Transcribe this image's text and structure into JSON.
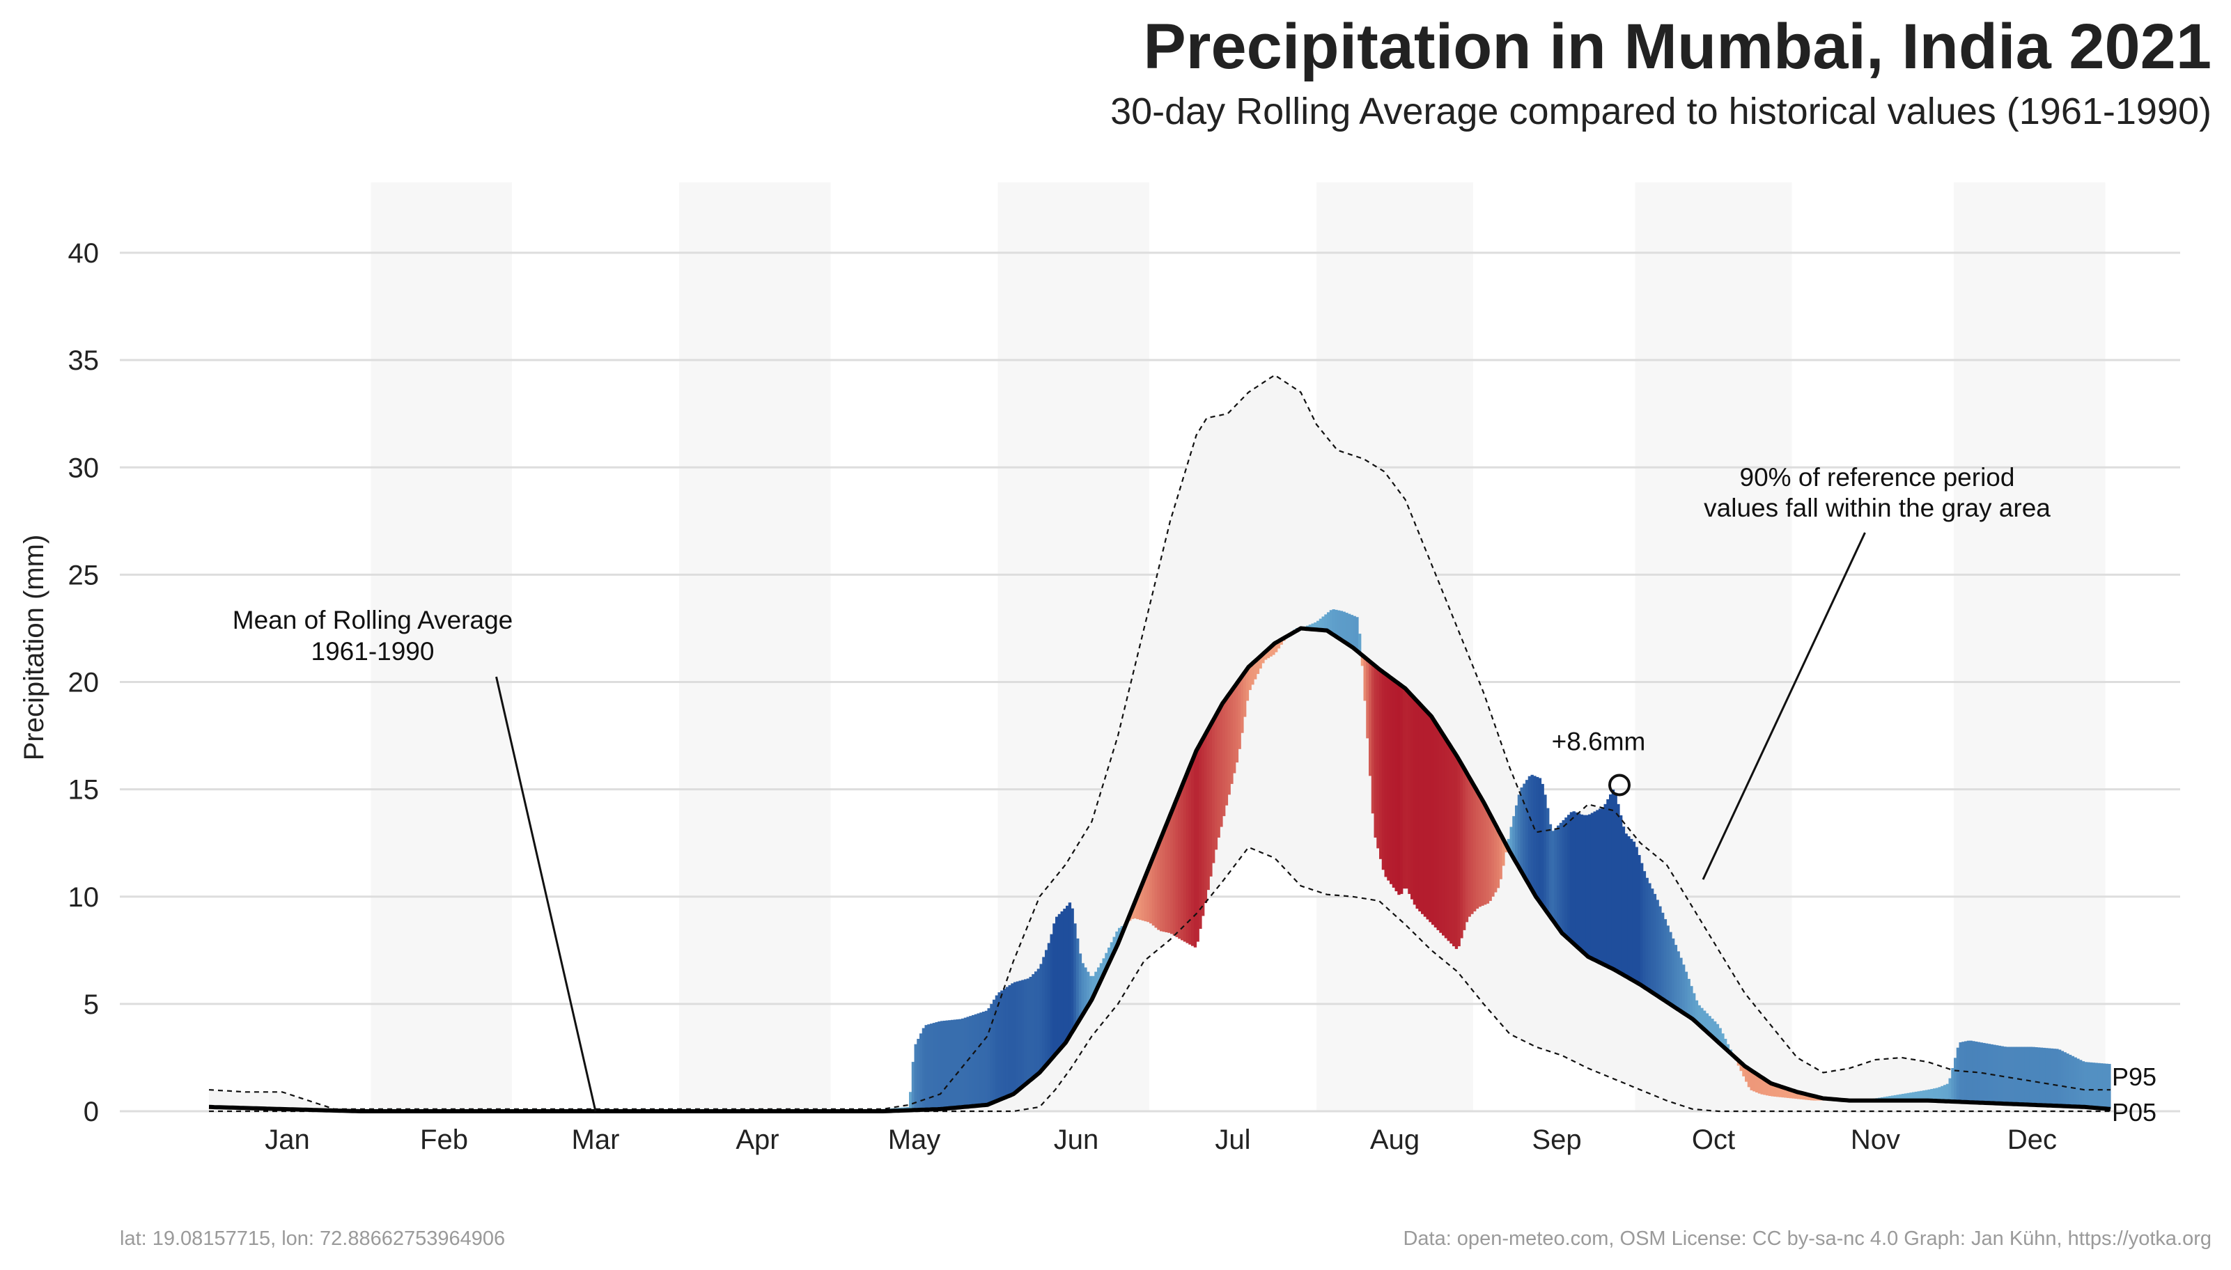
{
  "title": "Precipitation in Mumbai, India 2021",
  "subtitle": "30-day Rolling Average compared to historical values (1961-1990)",
  "footer": {
    "left": "lat: 19.08157715, lon: 72.88662753964906",
    "right": "Data: open-meteo.com, OSM  License: CC by-sa-nc 4.0  Graph: Jan Kühn, https://yotka.org"
  },
  "annotations": {
    "mean_line1": "Mean of Rolling Average",
    "mean_line2": "1961-1990",
    "band_line1": "90% of reference period",
    "band_line2": "values fall within the gray area",
    "peak": "+8.6mm",
    "p95": "P95",
    "p05": "P05"
  },
  "colors": {
    "above_mean": "#1f4e9c",
    "above_mean_light": "#6fb3d6",
    "below_mean": "#f4a582",
    "below_mean_dark": "#b2182b",
    "band": "#f5f5f5",
    "mean_line": "#000000",
    "month_shade": "#f7f7f7",
    "grid": "#dddddd"
  },
  "chart_data": {
    "type": "area",
    "ylabel": "Precipitation (mm)",
    "xlabel": "",
    "ylim": [
      0,
      40
    ],
    "yticks": [
      0,
      5,
      10,
      15,
      20,
      25,
      30,
      35,
      40
    ],
    "xlim": [
      1,
      365
    ],
    "month_labels": [
      "Jan",
      "Feb",
      "Mar",
      "Apr",
      "May",
      "Jun",
      "Jul",
      "Aug",
      "Sep",
      "Oct",
      "Nov",
      "Dec"
    ],
    "month_centers": [
      16,
      46,
      75,
      106,
      136,
      167,
      197,
      228,
      259,
      289,
      320,
      350
    ],
    "shaded_months": [
      [
        32,
        59
      ],
      [
        91,
        120
      ],
      [
        152,
        181
      ],
      [
        213,
        243
      ],
      [
        274,
        304
      ],
      [
        335,
        364
      ]
    ],
    "grid": true,
    "mean": {
      "x": [
        1,
        15,
        30,
        60,
        80,
        110,
        130,
        141,
        150,
        155,
        160,
        165,
        170,
        175,
        180,
        185,
        190,
        195,
        200,
        205,
        210,
        215,
        220,
        225,
        230,
        235,
        240,
        245,
        250,
        255,
        260,
        265,
        270,
        275,
        280,
        285,
        290,
        295,
        300,
        305,
        310,
        315,
        320,
        330,
        340,
        350,
        360,
        365
      ],
      "y": [
        0.2,
        0.1,
        0.0,
        0.0,
        0.0,
        0.0,
        0.0,
        0.1,
        0.3,
        0.8,
        1.8,
        3.2,
        5.2,
        7.8,
        10.8,
        13.8,
        16.8,
        19.0,
        20.7,
        21.8,
        22.5,
        22.4,
        21.6,
        20.6,
        19.7,
        18.4,
        16.5,
        14.4,
        12.1,
        10.0,
        8.3,
        7.2,
        6.6,
        5.9,
        5.1,
        4.3,
        3.2,
        2.1,
        1.3,
        0.9,
        0.6,
        0.5,
        0.5,
        0.5,
        0.4,
        0.3,
        0.2,
        0.1
      ]
    },
    "p95": {
      "x": [
        1,
        8,
        15,
        20,
        25,
        60,
        100,
        130,
        135,
        141,
        150,
        155,
        160,
        165,
        170,
        175,
        180,
        185,
        190,
        192,
        196,
        200,
        205,
        210,
        213,
        217,
        222,
        226,
        230,
        235,
        240,
        245,
        250,
        255,
        260,
        265,
        270,
        275,
        280,
        285,
        290,
        295,
        300,
        305,
        310,
        315,
        320,
        325,
        330,
        335,
        340,
        345,
        350,
        355,
        360,
        365
      ],
      "y": [
        1.0,
        0.9,
        0.9,
        0.5,
        0.1,
        0.1,
        0.1,
        0.1,
        0.3,
        0.8,
        3.5,
        7.0,
        10.0,
        11.5,
        13.5,
        17.5,
        22.5,
        27.5,
        31.5,
        32.3,
        32.5,
        33.5,
        34.3,
        33.5,
        32.0,
        30.8,
        30.4,
        29.8,
        28.5,
        25.5,
        22.5,
        19.5,
        16.0,
        13.0,
        13.2,
        14.3,
        14.0,
        12.5,
        11.5,
        9.5,
        7.5,
        5.5,
        4.0,
        2.5,
        1.8,
        2.0,
        2.4,
        2.5,
        2.3,
        1.9,
        1.8,
        1.6,
        1.4,
        1.2,
        1.0,
        1.0
      ]
    },
    "p05": {
      "x": [
        1,
        141,
        150,
        155,
        160,
        163,
        166,
        170,
        175,
        180,
        185,
        190,
        195,
        200,
        205,
        210,
        215,
        220,
        225,
        230,
        235,
        240,
        245,
        250,
        255,
        260,
        265,
        270,
        275,
        280,
        285,
        290,
        300,
        320,
        340,
        360,
        365
      ],
      "y": [
        0.0,
        0.0,
        0.0,
        0.0,
        0.2,
        1.0,
        2.0,
        3.5,
        5.0,
        7.0,
        8.0,
        9.2,
        10.7,
        12.3,
        11.8,
        10.5,
        10.1,
        10.0,
        9.8,
        8.7,
        7.5,
        6.5,
        5.0,
        3.6,
        3.0,
        2.6,
        2.0,
        1.5,
        1.0,
        0.5,
        0.1,
        0.0,
        0.0,
        0.0,
        0.0,
        0.0,
        0.0
      ]
    },
    "actual": {
      "x": [
        1,
        130,
        135,
        136,
        138,
        141,
        145,
        150,
        152,
        155,
        158,
        160,
        162,
        163,
        165,
        166,
        168,
        170,
        172,
        175,
        178,
        181,
        183,
        185,
        187,
        190,
        192,
        194,
        196,
        198,
        200,
        203,
        205,
        207,
        209,
        211,
        213,
        216,
        218,
        221,
        222,
        224,
        226,
        229,
        230,
        232,
        234,
        236,
        238,
        240,
        242,
        244,
        246,
        248,
        250,
        252,
        254,
        256,
        257,
        258,
        260,
        262,
        264,
        265,
        268,
        270,
        272,
        274,
        276,
        278,
        280,
        283,
        286,
        290,
        292,
        294,
        296,
        298,
        300,
        304,
        308,
        312,
        316,
        320,
        325,
        330,
        332,
        334,
        336,
        338,
        345,
        350,
        355,
        360,
        365
      ],
      "y": [
        0.1,
        0.1,
        0.2,
        3.0,
        4.0,
        4.2,
        4.3,
        4.7,
        5.5,
        6.0,
        6.2,
        6.7,
        8.0,
        9.0,
        9.5,
        9.8,
        7.0,
        6.2,
        7.0,
        8.5,
        9.0,
        8.8,
        8.4,
        8.3,
        8.0,
        7.6,
        10.0,
        12.5,
        14.5,
        16.5,
        19.5,
        21.0,
        21.3,
        22.0,
        22.5,
        22.6,
        22.8,
        23.4,
        23.3,
        23.0,
        20.0,
        13.0,
        11.0,
        10.0,
        10.5,
        9.5,
        9.0,
        8.5,
        8.0,
        7.5,
        9.0,
        9.5,
        9.7,
        10.5,
        13.0,
        15.0,
        15.7,
        15.5,
        14.5,
        13.0,
        13.5,
        14.0,
        13.8,
        13.8,
        14.2,
        15.1,
        13.0,
        12.5,
        11.0,
        10.0,
        8.8,
        7.0,
        5.0,
        4.0,
        3.0,
        2.0,
        1.0,
        0.8,
        0.7,
        0.6,
        0.5,
        0.5,
        0.5,
        0.6,
        0.8,
        1.0,
        1.1,
        1.3,
        3.2,
        3.3,
        3.0,
        3.0,
        2.9,
        2.3,
        2.2
      ]
    },
    "peak_marker": {
      "x": 271,
      "y": 15.2
    },
    "series": [
      {
        "name": "P95"
      },
      {
        "name": "P05"
      }
    ]
  }
}
